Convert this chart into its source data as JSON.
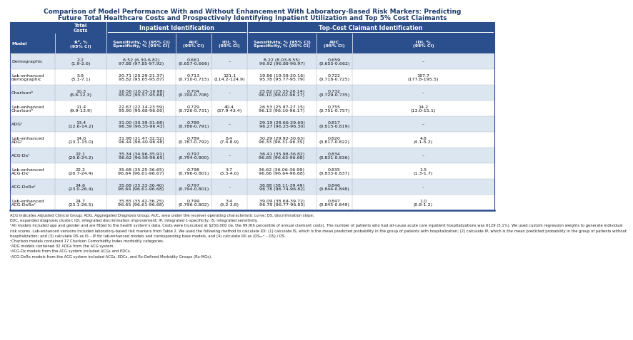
{
  "title_line1": "Comparison of Model Performance With and Without Enhancement With Laboratory-Based Risk Markers: Predicting",
  "title_line2": "Future Total Healthcare Costs and Prospectively Identifying Inpatient Utilization and Top 5% Cost Claimants",
  "title_color": "#1a3a6b",
  "header_bg": "#2b4e8c",
  "header_text_color": "#FFFFFF",
  "row_alt_bg": "#dce6f1",
  "row_bg": "#FFFFFF",
  "border_color": "#2b4e8c",
  "rows": [
    {
      "model": "Demographic",
      "r2": "2.2\n(1.9-2.6)",
      "sens_ip": "6.52 (6.30-6.82)\n97.88 (97.85-97.92)",
      "auc_ip": "0.661\n(0.657-0.666)",
      "idi_ip": "–",
      "sens_tc": "8.22 (8.03-8.55)\n96.92 (96.88-96.97)",
      "auc_tc": "0.659\n(0.655-0.662)",
      "idi_tc": "–",
      "shaded": true
    },
    {
      "model": "Lab-enhanced\ndemographic",
      "r2": "5.9\n(5.1-7.1)",
      "sens_ip": "20.71 (20.29-21.37)\n95.82 (95.65-95.87)",
      "auc_ip": "0.713\n(0.710-0.715)",
      "idi_ip": "121.1\n(114.2-124.9)",
      "sens_tc": "19.86 (19.58-20.16)\n95.78 (95.77-95.79)",
      "auc_tc": "0.722\n(0.718-0.725)",
      "idi_tc": "187.7\n(177.8-195.5)",
      "shaded": false
    },
    {
      "model": "Charlsonᵇ",
      "r2": "10.3\n(8.8-12.3)",
      "sens_ip": "16.56 (16.25-16.98)\n95.62 (95.57-95.68)",
      "auc_ip": "0.704\n(0.700-0.708)",
      "idi_ip": "–",
      "sens_tc": "25.82 (25.35-26.14)\n96.10 (96.02-96.17)",
      "auc_tc": "0.732\n(0.729-0.735)",
      "idi_tc": "–",
      "shaded": true
    },
    {
      "model": "Lab-enhanced\nCharlsonᵇ",
      "r2": "11.4\n(9.9-13.9)",
      "sens_ip": "22.67 (22.14-23.59)\n95.90 (95.68-96.00)",
      "auc_ip": "0.729\n(0.726-0.731)",
      "idi_ip": "40.4\n(37.9-43.4)",
      "sens_tc": "26.53 (25.97-27.15)\n96.13 (96.10-96.17)",
      "auc_tc": "0.755\n(0.751-0.757)",
      "idi_tc": "14.2\n(13.0-15.1)",
      "shaded": false
    },
    {
      "model": "ADGᶜ",
      "r2": "13.4\n(12.6-14.2)",
      "sens_ip": "31.00 (30.39-31.68)\n96.39 (96.35-96.43)",
      "auc_ip": "0.789\n(0.786-0.791)",
      "idi_ip": "–",
      "sens_tc": "29.19 (28.66-29.60)\n96.27 (96.25-96.30)",
      "auc_tc": "0.817\n(0.815-0.819)",
      "idi_tc": "–",
      "shaded": true
    },
    {
      "model": "Lab-enhanced\nADGᶜ",
      "r2": "14.0\n(13.1-15.0)",
      "sens_ip": "31.98 (31.47-32.52)\n96.44 (96.40-96.48)",
      "auc_ip": "0.789\n(0.787-0.792)",
      "idi_ip": "8.4\n(7.4-8.9)",
      "sens_tc": "30.29 (29.92-30.63)\n96.33 (96.31-96.35)",
      "auc_tc": "0.820\n(0.817-0.822)",
      "idi_tc": "4.8\n(4.1-5.2)",
      "shaded": false
    },
    {
      "model": "ACG-Dxᶜ",
      "r2": "22.1\n(20.6-24.2)",
      "sens_ip": "35.34 (34.96-35.91)\n96.62 (96.58-96.65)",
      "auc_ip": "0.797\n(0.794-0.800)",
      "idi_ip": "–",
      "sens_tc": "36.41 (35.98-36.82)\n96.65 (96.63-96.68)",
      "auc_tc": "0.834\n(0.831-0.836)",
      "idi_tc": "–",
      "shaded": true
    },
    {
      "model": "Lab-enhanced\nACG-Dxᶜ",
      "r2": "22.2\n(20.7-24.4)",
      "sens_ip": "35.68 (35.25-36.65)\n96.64 (96.61-96.67)",
      "auc_ip": "0.798\n(0.796-0.801)",
      "idi_ip": "3.7\n(3.3-4.0)",
      "sens_tc": "36.62 (36.06-36.99)\n96.66 (96.64-96.68)",
      "auc_tc": "0.835\n(0.833-0.837)",
      "idi_tc": "1.5\n(1.3-1.7)",
      "shaded": false
    },
    {
      "model": "ACG-DxRxᶜ",
      "r2": "24.6\n(23.0-26.4)",
      "sens_ip": "35.68 (35.33-36.40)\n96.64 (96.61-96.68)",
      "auc_ip": "0.797\n(0.794-0.801)",
      "idi_ip": "–",
      "sens_tc": "38.88 (38.11-39.49)\n96.78 (96.74-96.82)",
      "auc_tc": "0.846\n(0.844-0.848)",
      "idi_tc": "–",
      "shaded": true
    },
    {
      "model": "Lab-enhanced\nACG-DxRxᶜ",
      "r2": "24.7\n(23.1-26.5)",
      "sens_ip": "35.85 (35.42-36.25)\n96.65 (96.61-96.68)",
      "auc_ip": "0.799\n(0.796-0.802)",
      "idi_ip": "3.4\n(3.2-3.8)",
      "sens_tc": "39.09 (38.69-39.72)\n96.79 (96.77-96.83)",
      "auc_tc": "0.847\n(0.845-0.849)",
      "idi_tc": "1.0\n(0.8-1.2)",
      "shaded": false
    }
  ],
  "footnotes": [
    "ACG indicates Adjusted Clinical Group; ADG, Aggregated Diagnosis Group; AUC, area under the receiver operating characteristic curve; DS, discrimination slope;",
    "EDC, expanded diagnosis cluster; IDI, integrated discrimination improvement; IP, integrated 1-specificity; IS, integrated sensitivity.",
    "ᵇAll models included age and gender and are fitted to the health system’s data. Costs were truncated at $250,000 (ie, the 99.9th percentile of annual claimant costs). The number of patients who had all-cause acute care inpatient hospitalizations was 6129 (5.1%). We used custom regression weights to generate individual",
    "risk scores. Lab-enhanced versions included laboratory-based risk markers from Table 2. We used the following method to calculate IDI: (1) calculate IS, which is the mean predicted probability in the group of patients with hospitalization; (2) calculate IP, which is the mean predicted probability in the group of patients without",
    "hospitalization; and (3) calculate DS as IS – IP for lab-enhanced models and corresponding base models, and (4) calculate IDI as (DSₙₑʷ – DS) / DS.",
    "ᶜCharlson models contained 17 Charlson Comorbidity Index morbidity categories.",
    "ᶜADG models contained 32 ADGs from the ACG system.",
    "ᶜACG-Dx models from the ACG system included ACGs and EDCs.",
    "ᶜACG-DxRx models from the ACG system included ACGs, EDCs, and Rx-Defined Morbidity Groups (Rx-MGs)."
  ]
}
